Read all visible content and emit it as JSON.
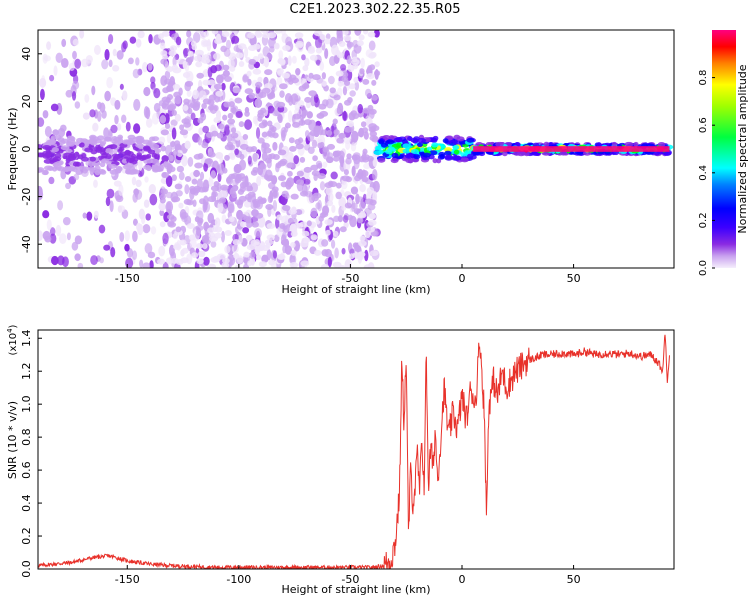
{
  "title": "C2E1.2023.302.22.35.R05",
  "colors": {
    "snr_line": "#e8312a",
    "colormap": [
      "#f0e4fa",
      "#c9a2ef",
      "#8a2be2",
      "#3c00ff",
      "#0000ff",
      "#00ffff",
      "#00ff00",
      "#ffff00",
      "#ff0000",
      "#ff0080"
    ]
  },
  "chart_data": [
    {
      "type": "heatmap",
      "title": "C2E1.2023.302.22.35.R05",
      "xlabel": "Height of straight line (km)",
      "ylabel": "Frequency (Hz)",
      "xlim": [
        -190,
        95
      ],
      "ylim": [
        -50,
        50
      ],
      "x_ticks": [
        "-150",
        "-100",
        "-50",
        "0",
        "50"
      ],
      "y_ticks": [
        "40",
        "20",
        "0",
        "-20",
        "-40"
      ],
      "colorbar": {
        "label": "Normalized spectral amplitude",
        "range": [
          0,
          1
        ],
        "ticks": [
          "0.0",
          "0.2",
          "0.4",
          "0.6",
          "0.8"
        ]
      },
      "regions": [
        {
          "x": [
            -190,
            -135
          ],
          "description": "low-amplitude broadband noise with strong narrow band near 0 Hz",
          "band_hz": [
            -10,
            5
          ],
          "peak_amplitude": 0.3
        },
        {
          "x": [
            -135,
            -38
          ],
          "description": "broadband noise across all frequencies",
          "band_hz": [
            -50,
            50
          ],
          "peak_amplitude": 0.12
        },
        {
          "x": [
            -38,
            5
          ],
          "description": "narrow signal band emerging near 0 Hz",
          "band_hz": [
            -5,
            5
          ],
          "peak_amplitude": 0.9
        },
        {
          "x": [
            5,
            93
          ],
          "description": "strong narrow tone near 0 Hz",
          "band_hz": [
            -2,
            2
          ],
          "peak_amplitude": 1.0
        }
      ]
    },
    {
      "type": "line",
      "xlabel": "Height of straight line (km)",
      "ylabel": "SNR (10 * v/v)",
      "y_multiplier": "(x10",
      "y_multiplier_exp": "4",
      "xlim": [
        -190,
        95
      ],
      "ylim": [
        0,
        1.45
      ],
      "x_ticks": [
        "-150",
        "-100",
        "-50",
        "0",
        "50"
      ],
      "y_ticks": [
        "0.0",
        "0.2",
        "0.4",
        "0.6",
        "0.8",
        "1.0",
        "1.2",
        "1.4"
      ],
      "series": [
        {
          "x": [
            -190,
            -175,
            -165,
            -158,
            -150,
            -140,
            -130,
            -110,
            -80,
            -50,
            -40,
            -35,
            -32,
            -30,
            -28,
            -27,
            -26,
            -25,
            -24,
            -23,
            -22,
            -21,
            -20,
            -19,
            -18,
            -17,
            -16,
            -15,
            -14,
            -13,
            -12,
            -11,
            -10,
            -8,
            -6,
            -4,
            -2,
            0,
            2,
            4,
            6,
            8,
            10,
            11,
            12,
            13,
            14,
            16,
            18,
            20,
            22,
            24,
            26,
            28,
            30,
            33,
            36,
            40,
            45,
            50,
            55,
            60,
            65,
            70,
            75,
            80,
            85,
            88,
            90,
            91,
            92,
            93
          ],
          "y": [
            0.02,
            0.04,
            0.07,
            0.08,
            0.05,
            0.03,
            0.02,
            0.01,
            0.01,
            0.01,
            0.01,
            0.02,
            0.05,
            0.15,
            0.45,
            1.25,
            0.9,
            1.3,
            0.2,
            0.6,
            0.4,
            0.5,
            0.7,
            0.45,
            0.8,
            0.5,
            1.3,
            0.5,
            0.75,
            0.6,
            0.85,
            0.55,
            0.7,
            1.1,
            0.8,
            0.95,
            0.85,
            1.05,
            0.9,
            1.1,
            1.0,
            1.4,
            0.95,
            0.3,
            1.0,
            1.05,
            1.15,
            1.05,
            1.2,
            1.1,
            1.15,
            1.2,
            1.22,
            1.25,
            1.27,
            1.28,
            1.3,
            1.3,
            1.31,
            1.3,
            1.32,
            1.3,
            1.31,
            1.3,
            1.31,
            1.29,
            1.3,
            1.25,
            1.2,
            1.45,
            1.15,
            1.3
          ]
        }
      ]
    }
  ]
}
